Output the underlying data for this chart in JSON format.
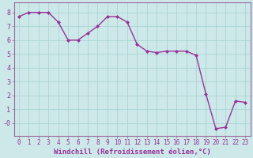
{
  "x": [
    0,
    1,
    2,
    3,
    4,
    5,
    6,
    7,
    8,
    9,
    10,
    11,
    12,
    13,
    14,
    15,
    16,
    17,
    18,
    19,
    20,
    21,
    22,
    23
  ],
  "y": [
    7.7,
    8.0,
    8.0,
    8.0,
    7.3,
    6.0,
    6.0,
    6.5,
    7.0,
    7.7,
    7.7,
    7.3,
    5.7,
    5.2,
    5.1,
    5.2,
    5.2,
    5.2,
    4.9,
    2.1,
    -0.4,
    -0.3,
    1.6,
    1.5
  ],
  "line_color": "#993399",
  "marker": "D",
  "marker_size": 2.0,
  "bg_color": "#cce8e8",
  "grid_color": "#aad4d4",
  "xlabel": "Windchill (Refroidissement éolien,°C)",
  "xlabel_fontsize": 6.5,
  "ylabel_ticks": [
    0,
    1,
    2,
    3,
    4,
    5,
    6,
    7,
    8
  ],
  "ytick_labels": [
    "-0",
    "1",
    "2",
    "3",
    "4",
    "5",
    "6",
    "7",
    "8"
  ],
  "xlim": [
    -0.5,
    23.5
  ],
  "ylim": [
    -0.9,
    8.7
  ],
  "xtick_labels": [
    "0",
    "1",
    "2",
    "3",
    "4",
    "5",
    "6",
    "7",
    "8",
    "9",
    "10",
    "11",
    "12",
    "13",
    "14",
    "15",
    "16",
    "17",
    "18",
    "19",
    "20",
    "21",
    "22",
    "23"
  ],
  "spine_color": "#996699",
  "tick_color": "#993399",
  "xlabel_color": "#993399",
  "linewidth": 1.0,
  "tick_fontsize": 5.5,
  "grid_linewidth": 0.6
}
